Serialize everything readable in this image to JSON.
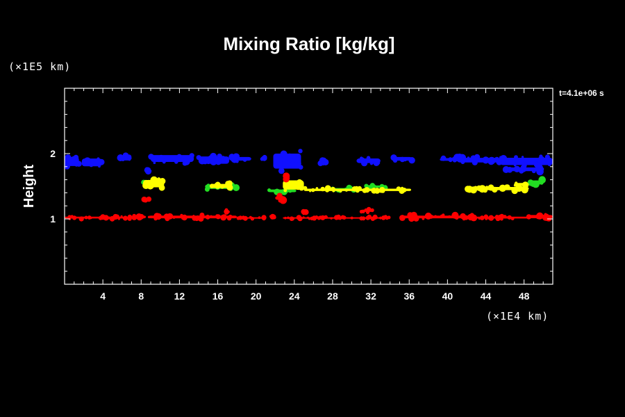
{
  "colors": {
    "background": "#000000",
    "frame": "#ffffff",
    "blue": "#1010ff",
    "red": "#ff0000",
    "yellow": "#ffff00",
    "green": "#22dd22"
  },
  "chart_data": {
    "type": "scatter",
    "title": "Mixing Ratio [kg/kg]",
    "ylabel": "Height",
    "xunit": "(×1E4 km)",
    "yunit": "(×1E5 km)",
    "time_label": "t=4.1e+06 s",
    "xlim": [
      0,
      51
    ],
    "ylim": [
      0,
      3
    ],
    "x_ticks": [
      4,
      8,
      12,
      16,
      20,
      24,
      28,
      32,
      36,
      40,
      44,
      48
    ],
    "y_ticks": [
      1,
      2
    ],
    "x_minor_step": 1,
    "y_minor_step": 0.2,
    "series": [
      {
        "color": "blue",
        "regions": [
          {
            "x0": 0,
            "x1": 1.5,
            "y0": 1.78,
            "y1": 1.98
          },
          {
            "x0": 1.8,
            "x1": 3.9,
            "y0": 1.78,
            "y1": 1.95
          },
          {
            "x0": 5.5,
            "x1": 7.0,
            "y0": 1.88,
            "y1": 1.98
          },
          {
            "x0": 8.5,
            "x1": 9.0,
            "y0": 1.7,
            "y1": 1.76
          },
          {
            "x0": 9.0,
            "x1": 13.5,
            "y0": 1.85,
            "y1": 2.0
          },
          {
            "x0": 14.0,
            "x1": 17.2,
            "y0": 1.82,
            "y1": 1.98
          },
          {
            "x0": 17.2,
            "x1": 19.5,
            "y0": 1.88,
            "y1": 1.96
          },
          {
            "x0": 20.5,
            "x1": 21.0,
            "y0": 1.9,
            "y1": 1.96
          },
          {
            "x0": 21.8,
            "x1": 24.7,
            "y0": 1.72,
            "y1": 2.05
          },
          {
            "x0": 26.5,
            "x1": 27.3,
            "y0": 1.84,
            "y1": 1.9
          },
          {
            "x0": 30.5,
            "x1": 33.0,
            "y0": 1.84,
            "y1": 1.94
          },
          {
            "x0": 34.3,
            "x1": 36.3,
            "y0": 1.88,
            "y1": 1.96
          },
          {
            "x0": 39.2,
            "x1": 40.8,
            "y0": 1.88,
            "y1": 1.94
          },
          {
            "x0": 41.0,
            "x1": 45.5,
            "y0": 1.85,
            "y1": 1.95
          },
          {
            "x0": 45.5,
            "x1": 51.0,
            "y0": 1.8,
            "y1": 1.96
          },
          {
            "x0": 46.0,
            "x1": 50.0,
            "y0": 1.72,
            "y1": 1.8
          }
        ]
      },
      {
        "color": "green",
        "regions": [
          {
            "x0": 8.0,
            "x1": 9.3,
            "y0": 1.53,
            "y1": 1.58
          },
          {
            "x0": 14.8,
            "x1": 18.0,
            "y0": 1.45,
            "y1": 1.52
          },
          {
            "x0": 21.3,
            "x1": 24.2,
            "y0": 1.4,
            "y1": 1.46
          },
          {
            "x0": 27.5,
            "x1": 30.5,
            "y0": 1.43,
            "y1": 1.48
          },
          {
            "x0": 31.5,
            "x1": 33.5,
            "y0": 1.47,
            "y1": 1.52
          },
          {
            "x0": 48.5,
            "x1": 50.0,
            "y0": 1.53,
            "y1": 1.6
          }
        ]
      },
      {
        "color": "yellow",
        "regions": [
          {
            "x0": 8.2,
            "x1": 10.4,
            "y0": 1.46,
            "y1": 1.62
          },
          {
            "x0": 15.2,
            "x1": 17.4,
            "y0": 1.46,
            "y1": 1.55
          },
          {
            "x0": 22.8,
            "x1": 25.0,
            "y0": 1.42,
            "y1": 1.62
          },
          {
            "x0": 25.0,
            "x1": 36.2,
            "y0": 1.42,
            "y1": 1.47
          },
          {
            "x0": 42.0,
            "x1": 48.5,
            "y0": 1.43,
            "y1": 1.5
          },
          {
            "x0": 47.0,
            "x1": 48.5,
            "y0": 1.5,
            "y1": 1.56
          }
        ]
      },
      {
        "color": "red",
        "regions": [
          {
            "x0": 0,
            "x1": 7.0,
            "y0": 1.0,
            "y1": 1.04
          },
          {
            "x0": 7.2,
            "x1": 8.5,
            "y0": 1.0,
            "y1": 1.06
          },
          {
            "x0": 8.8,
            "x1": 18.0,
            "y0": 1.0,
            "y1": 1.06
          },
          {
            "x0": 18.0,
            "x1": 21.0,
            "y0": 1.0,
            "y1": 1.03
          },
          {
            "x0": 21.5,
            "x1": 22.0,
            "y0": 1.02,
            "y1": 1.05
          },
          {
            "x0": 22.8,
            "x1": 26.0,
            "y0": 1.0,
            "y1": 1.03
          },
          {
            "x0": 26.0,
            "x1": 30.0,
            "y0": 1.0,
            "y1": 1.03
          },
          {
            "x0": 30.0,
            "x1": 34.0,
            "y0": 1.0,
            "y1": 1.03
          },
          {
            "x0": 35.0,
            "x1": 43.0,
            "y0": 1.0,
            "y1": 1.06
          },
          {
            "x0": 43.0,
            "x1": 48.5,
            "y0": 1.0,
            "y1": 1.04
          },
          {
            "x0": 48.5,
            "x1": 51.0,
            "y0": 1.0,
            "y1": 1.07
          },
          {
            "x0": 8.3,
            "x1": 8.8,
            "y0": 1.28,
            "y1": 1.33
          },
          {
            "x0": 16.8,
            "x1": 17.2,
            "y0": 1.1,
            "y1": 1.14
          },
          {
            "x0": 22.0,
            "x1": 23.0,
            "y0": 1.28,
            "y1": 1.36
          },
          {
            "x0": 23.0,
            "x1": 23.4,
            "y0": 1.6,
            "y1": 1.68
          },
          {
            "x0": 24.8,
            "x1": 25.3,
            "y0": 1.08,
            "y1": 1.12
          },
          {
            "x0": 31.0,
            "x1": 32.2,
            "y0": 1.1,
            "y1": 1.15
          }
        ]
      }
    ]
  }
}
